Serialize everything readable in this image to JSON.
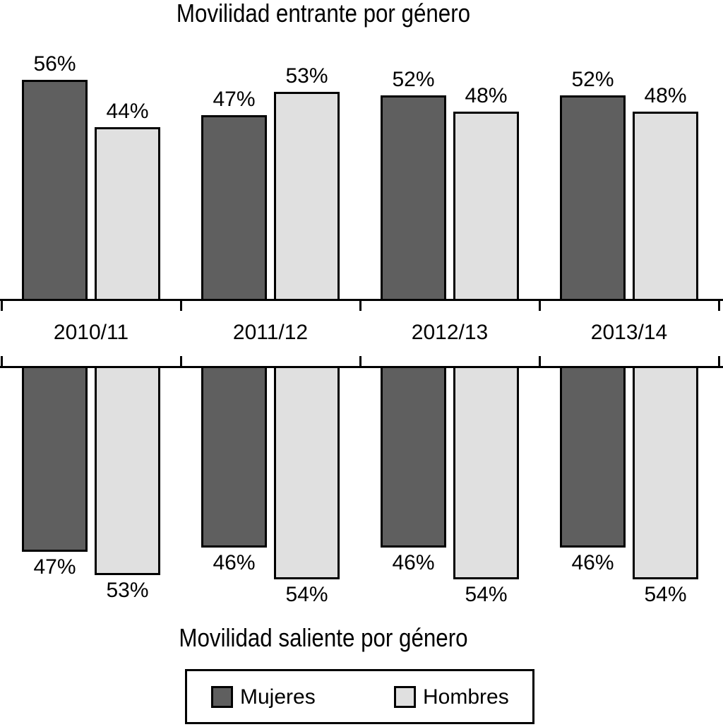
{
  "figure": {
    "background": "#ffffff",
    "text_color": "#000000"
  },
  "legend": {
    "items": [
      {
        "label": "Mujeres",
        "color": "#5f5f5f"
      },
      {
        "label": "Hombres",
        "color": "#e0e0e0"
      }
    ],
    "position": "bottom",
    "boxed": true
  },
  "chart_data": [
    {
      "type": "bar",
      "title": "Movilidad entrante por género",
      "orientation": "up",
      "unit": "percent",
      "categories": [
        "2010/11",
        "2011/12",
        "2012/13",
        "2013/14"
      ],
      "series": [
        {
          "name": "Mujeres",
          "color": "#5f5f5f",
          "values": [
            56,
            47,
            52,
            52
          ],
          "labels": [
            "56%",
            "47%",
            "52%",
            "52%"
          ]
        },
        {
          "name": "Hombres",
          "color": "#e0e0e0",
          "values": [
            44,
            53,
            48,
            48
          ],
          "labels": [
            "44%",
            "53%",
            "48%",
            "48%"
          ]
        }
      ],
      "ylim": [
        0,
        60
      ],
      "grid": false,
      "value_labels_shown": true,
      "axis_tick_positions": "category-boundaries"
    },
    {
      "type": "bar",
      "title": "Movilidad saliente por género",
      "orientation": "down",
      "unit": "percent",
      "categories": [
        "2010/11",
        "2011/12",
        "2012/13",
        "2013/14"
      ],
      "series": [
        {
          "name": "Mujeres",
          "color": "#5f5f5f",
          "values": [
            47,
            46,
            46,
            46
          ],
          "labels": [
            "47%",
            "46%",
            "46%",
            "46%"
          ]
        },
        {
          "name": "Hombres",
          "color": "#e0e0e0",
          "values": [
            53,
            54,
            54,
            54
          ],
          "labels": [
            "53%",
            "54%",
            "54%",
            "54%"
          ]
        }
      ],
      "ylim": [
        0,
        60
      ],
      "grid": false,
      "value_labels_shown": true,
      "axis_tick_positions": "category-boundaries"
    }
  ]
}
